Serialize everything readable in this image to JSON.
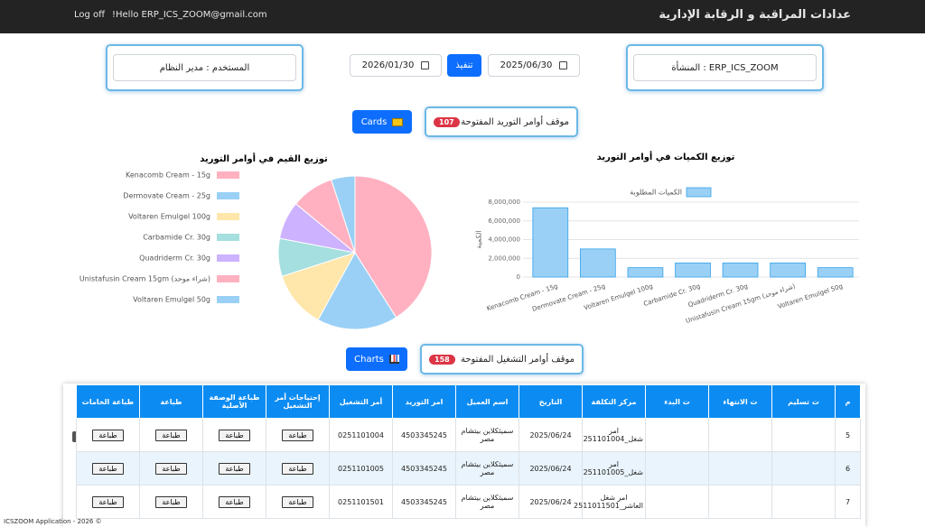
{
  "navbar": {
    "title": "عدادات المراقبة و الرقابة الإدارية",
    "greeting": "!Hello ERP_ICS_ZOOM@gmail.com",
    "logout": "Log off"
  },
  "filters": {
    "user": "المستخدم : مدير النظام",
    "date_from": "2026/01/30",
    "execute": "تنفيذ",
    "date_to": "2025/06/30",
    "facility": "المنشأة : ERP_ICS_ZOOM"
  },
  "supply_section": {
    "button": "Cards",
    "label": "موقف أوامر التوريد المفتوحة",
    "count": 107
  },
  "chart_data": [
    {
      "type": "pie",
      "title": "توزيع القيم في أوامر التوريد",
      "categories": [
        "Kenacomb Cream - 15g",
        "Dermovate Cream - 25g",
        "Voltaren Emulgel 100g",
        "Carbamide Cr. 30g",
        "Quadriderm Cr. 30g",
        "Unistafusin Cream 15gm (شراء موحد)",
        "Voltaren Emulgel 50g"
      ],
      "values": [
        41,
        17,
        12,
        8,
        8,
        9,
        5
      ],
      "colors": [
        "#ffb1c1",
        "#9ad0f5",
        "#ffe6aa",
        "#a5dfdf",
        "#ccb2ff",
        "#ffb1c1",
        "#9ad0f5"
      ]
    },
    {
      "type": "bar",
      "title": "توزيع الكميات في أوامر التوريد",
      "ylabel": "الكمية",
      "categories": [
        "Kenacomb Cream - 15g",
        "Dermovate Cream - 25g",
        "Voltaren Emulgel 100g",
        "Carbamide Cr. 30g",
        "Quadriderm Cr. 30g",
        "Unistafusin Cream 15gm (شراء موحد)",
        "Voltaren Emulgel 50g"
      ],
      "series": [
        {
          "name": "الكميات المطلوبة",
          "color": "#9ad0f5",
          "values": [
            7400000,
            3000000,
            1000000,
            1500000,
            1500000,
            1500000,
            1000000
          ]
        }
      ],
      "ylim": [
        0,
        8000000
      ],
      "yticks": [
        0,
        {
          "value": 2000000,
          "label": "2,000,000"
        },
        {
          "value": 4000000,
          "label": "4,000,000"
        },
        {
          "value": 6000000,
          "label": "6,000,000"
        },
        {
          "value": 8000000,
          "label": "8,000,000"
        }
      ],
      "grid": true
    }
  ],
  "operations_section": {
    "button": "Charts",
    "label": "موقف أوامر التشغيل المفتوحة",
    "count": 158
  },
  "table": {
    "columns": [
      "م",
      "ت تسليم",
      "ت الانتهاء",
      "ت البدء",
      "مركز التكلفة",
      "التاريخ",
      "اسم العميل",
      "امر التوريد",
      "أمر التشغيل",
      "إحتياجات أمر التشغيل",
      "طباعة الوصفة الأصلية",
      "طباعة",
      "طباعة الخامات"
    ],
    "rows": [
      [
        5,
        null,
        null,
        null,
        "امر شغل_251101004",
        "2025/06/24",
        "سميثكلاين بيتشام مصر",
        "4503345245",
        "0251101004",
        "طباعة",
        "طباعة",
        "طباعة",
        "طباعة"
      ],
      [
        6,
        null,
        null,
        null,
        "امر شغل_251101005",
        "2025/06/24",
        "سميثكلاين بيتشام مصر",
        "4503345245",
        "0251101005",
        "طباعة",
        "طباعة",
        "طباعة",
        "طباعة"
      ],
      [
        7,
        null,
        null,
        null,
        "امر شغل العاشر_2511011501",
        "2025/06/24",
        "سميثكلاين بيتشام مصر",
        "4503345245",
        "0251101501",
        "طباعة",
        "طباعة",
        "طباعة",
        "طباعة"
      ]
    ]
  },
  "footer": "ICSZOOM Application - 2026 ©"
}
